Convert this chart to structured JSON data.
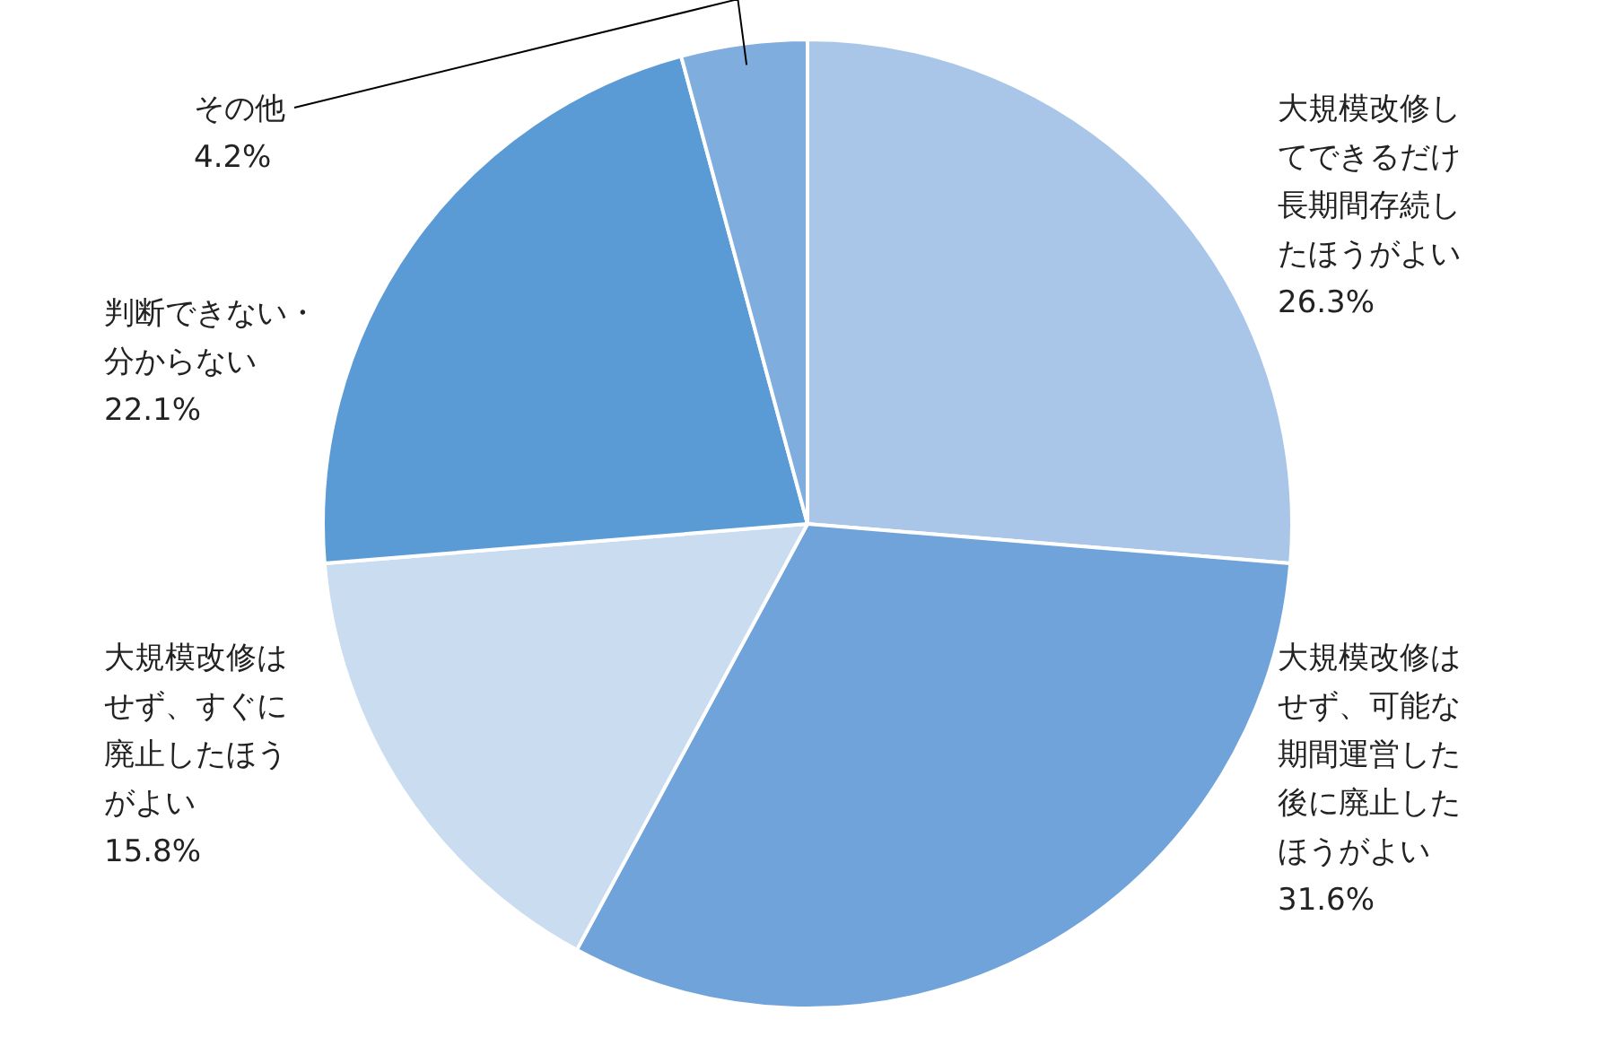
{
  "chart_data": {
    "type": "pie",
    "categories": [
      "大規模改修してできるだけ長期間存続したほうがよい",
      "大規模改修はせず、可能な期間運営した後に廃止したほうがよい",
      "大規模改修はせず、すぐに廃止したほうがよい",
      "判断できない・分からない",
      "その他"
    ],
    "values": [
      26.3,
      31.6,
      15.8,
      22.1,
      4.2
    ],
    "value_labels": [
      "26.3%",
      "31.6%",
      "15.8%",
      "22.1%",
      "4.2%"
    ],
    "colors": [
      "#a9c6e8",
      "#6fa3d9",
      "#c9dcf0",
      "#5b9bd5",
      "#7fadde"
    ]
  }
}
